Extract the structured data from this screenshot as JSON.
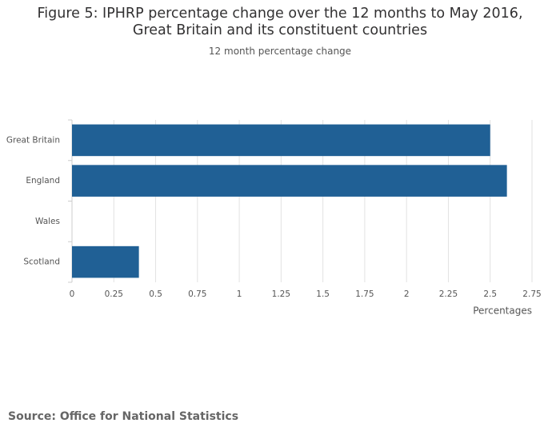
{
  "chart_data": {
    "type": "hbar",
    "title": "Figure 5: IPHRP percentage change over the 12 months to May 2016, Great Britain and its constituent countries",
    "subtitle": "12 month percentage change",
    "categories": [
      "Great Britain",
      "England",
      "Wales",
      "Scotland"
    ],
    "values": [
      2.5,
      2.6,
      0,
      0.4
    ],
    "color": "#206095",
    "xlim": [
      0,
      2.75
    ],
    "xticks": [
      0,
      0.25,
      0.5,
      0.75,
      1,
      1.25,
      1.5,
      1.75,
      2,
      2.25,
      2.5,
      2.75
    ],
    "xlabel": "Percentages",
    "grid": true,
    "source": "Source: Office for National Statistics"
  }
}
